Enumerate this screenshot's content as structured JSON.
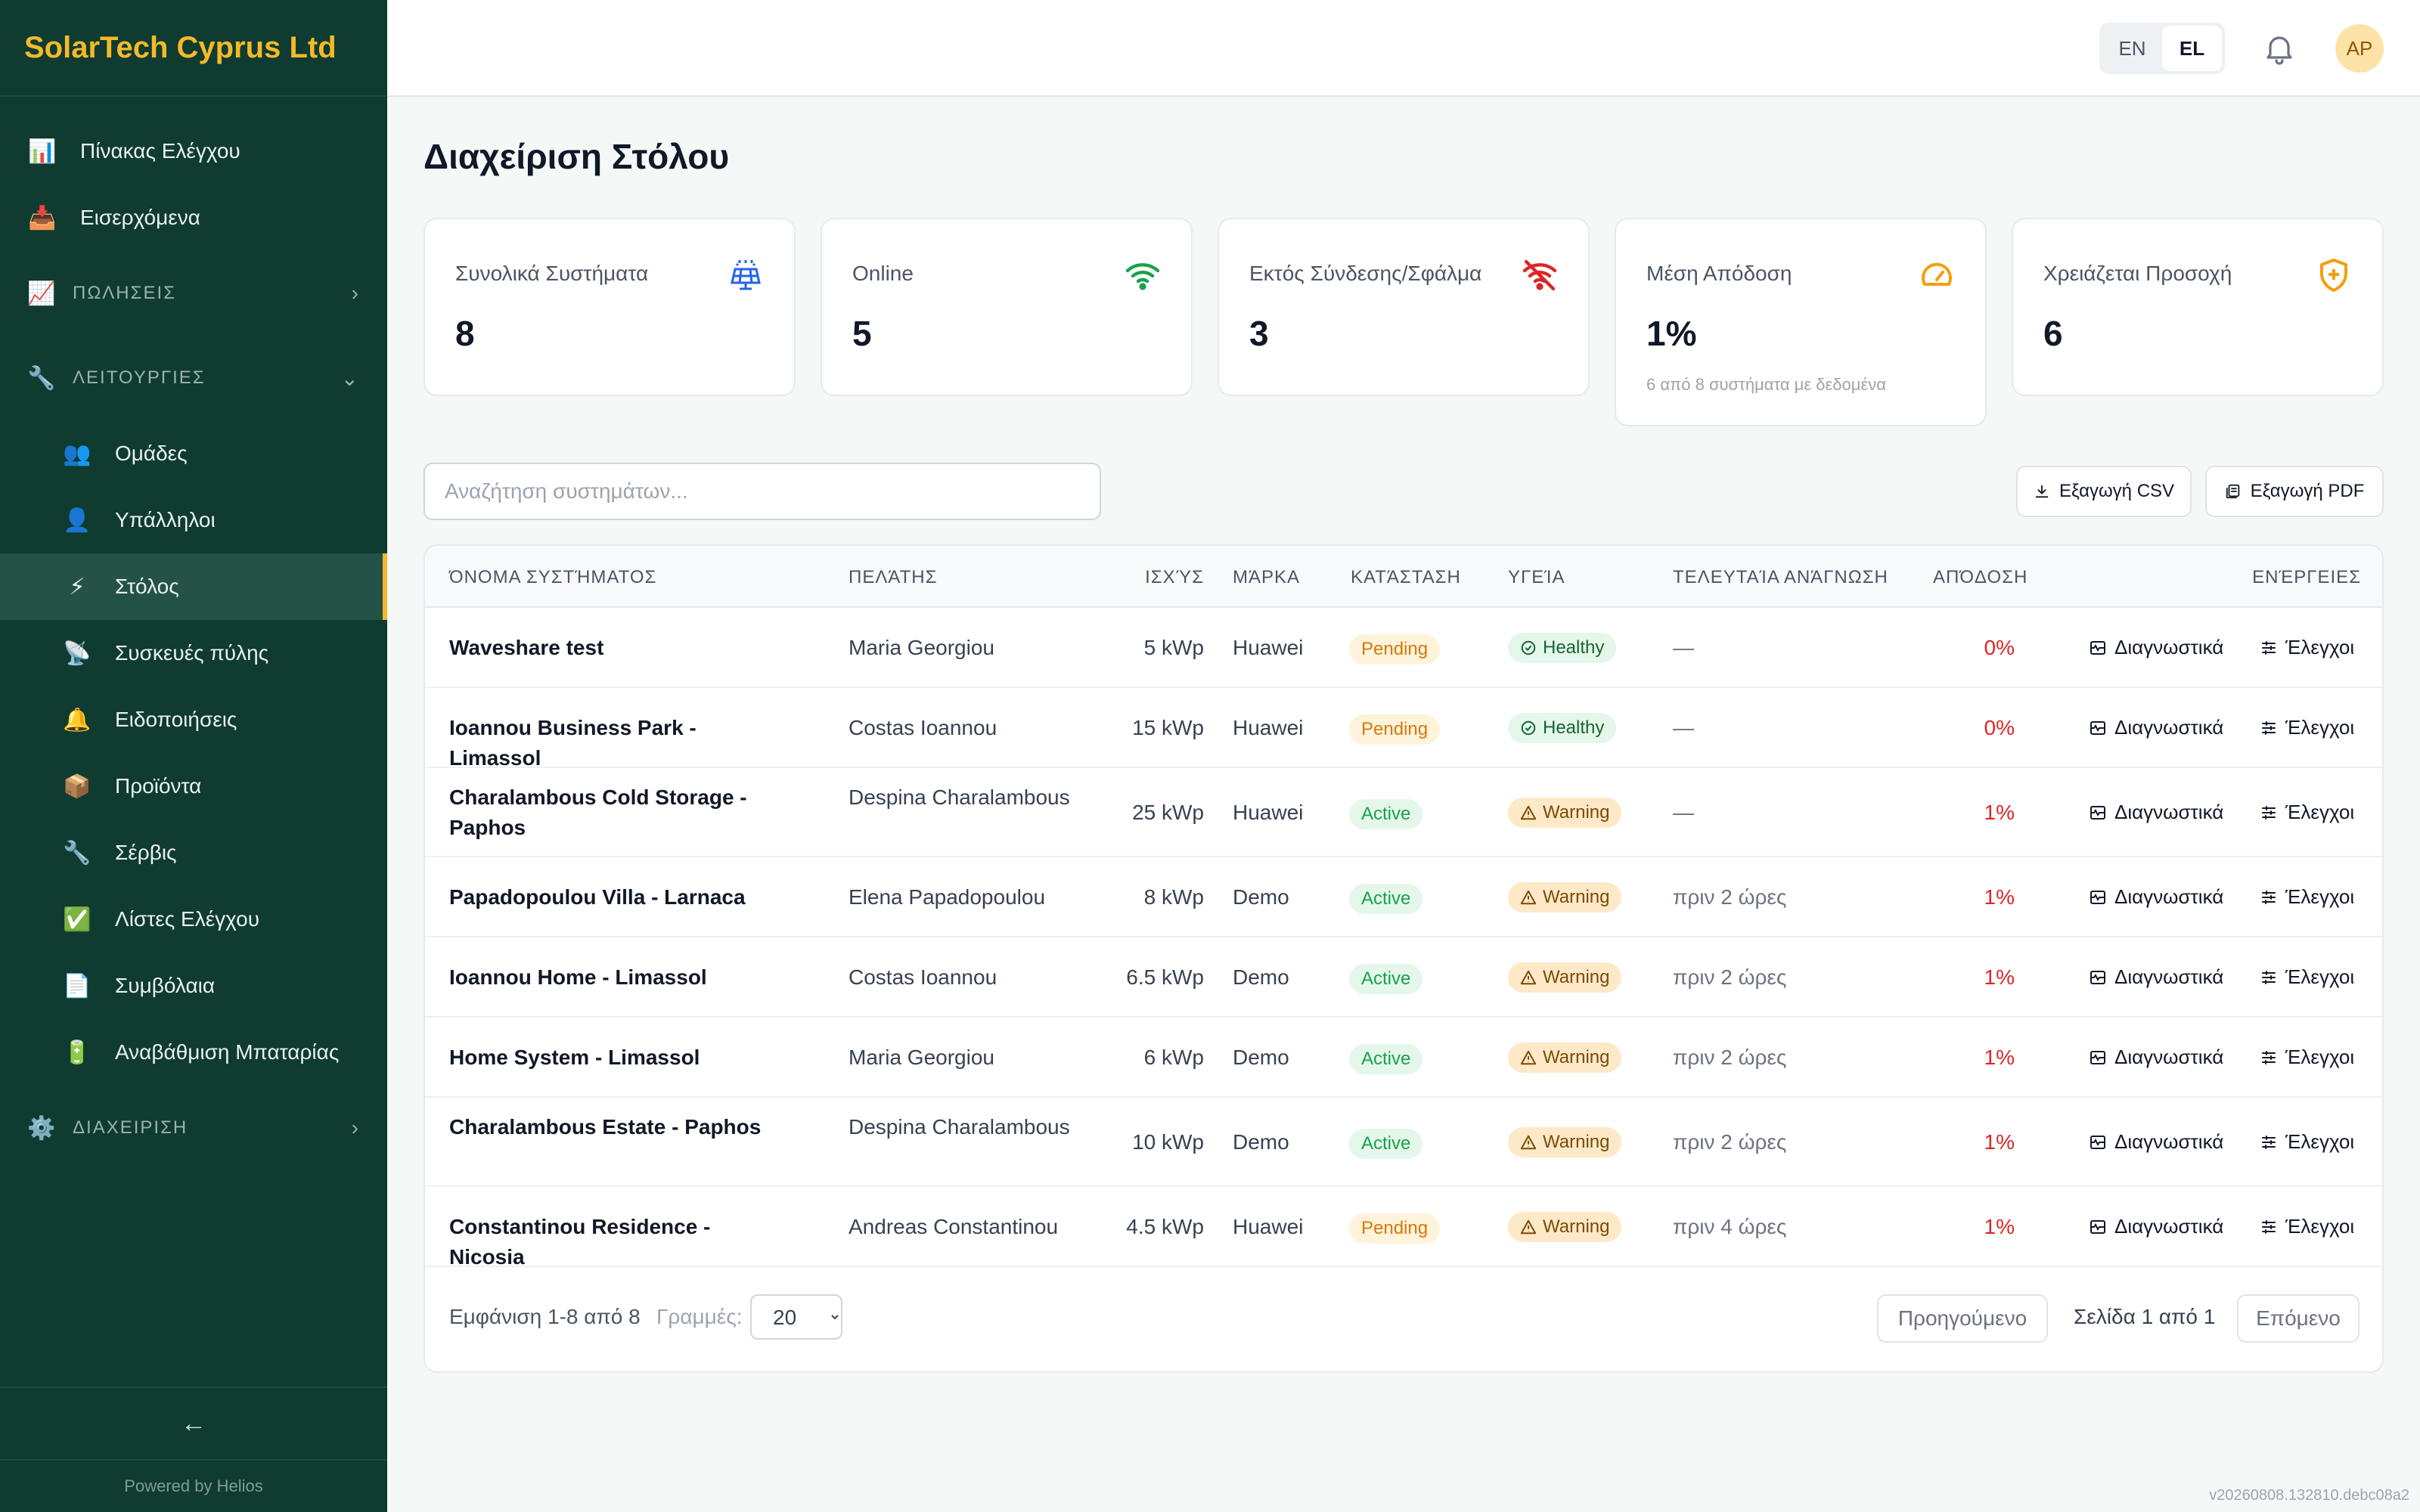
{
  "app": {
    "brand": "SolarTech Cyprus Ltd",
    "powered_by": "Powered by Helios",
    "version": "v20260808.132810.debc08a2",
    "collapse_icon": "←"
  },
  "sidebar": {
    "top_items": [
      {
        "label": "Πίνακας Ελέγχου",
        "icon": "📊"
      },
      {
        "label": "Εισερχόμενα",
        "icon": "📥"
      }
    ],
    "sections": {
      "sales": {
        "label": "ΠΩΛΗΣΕΙΣ",
        "icon": "📈"
      },
      "operations": {
        "label": "ΛΕΙΤΟΥΡΓΙΕΣ",
        "icon": "🔧"
      },
      "admin": {
        "label": "ΔΙΑΧΕΙΡΙΣΗ",
        "icon": "⚙️"
      }
    },
    "ops_items": [
      {
        "label": "Ομάδες",
        "icon": "👥"
      },
      {
        "label": "Υπάλληλοι",
        "icon": "👤"
      },
      {
        "label": "Στόλος",
        "icon": "⚡"
      },
      {
        "label": "Συσκευές πύλης",
        "icon": "📡"
      },
      {
        "label": "Ειδοποιήσεις",
        "icon": "🔔"
      },
      {
        "label": "Προϊόντα",
        "icon": "📦"
      },
      {
        "label": "Σέρβις",
        "icon": "🔧"
      },
      {
        "label": "Λίστες Ελέγχου",
        "icon": "✅"
      },
      {
        "label": "Συμβόλαια",
        "icon": "📄"
      },
      {
        "label": "Αναβάθμιση Μπαταρίας",
        "icon": "🔋"
      }
    ]
  },
  "header": {
    "lang_en": "EN",
    "lang_el": "EL",
    "avatar": "AP"
  },
  "page": {
    "title": "Διαχείριση Στόλου"
  },
  "stats": [
    {
      "label": "Συνολικά Συστήματα",
      "value": "8",
      "icon": "solar-panel-icon",
      "color": "#2563eb"
    },
    {
      "label": "Online",
      "value": "5",
      "icon": "wifi-icon",
      "color": "#16a34a"
    },
    {
      "label": "Εκτός Σύνδεσης/Σφάλμα",
      "value": "3",
      "icon": "wifi-off-icon",
      "color": "#dc2626"
    },
    {
      "label": "Μέση Απόδοση",
      "value": "1%",
      "note": "6 από 8 συστήματα με δεδομένα",
      "icon": "gauge-icon",
      "color": "#f59e0b"
    },
    {
      "label": "Χρειάζεται Προσοχή",
      "value": "6",
      "icon": "shield-icon",
      "color": "#f59e0b"
    }
  ],
  "toolbar": {
    "search_placeholder": "Αναζήτηση συστημάτων...",
    "export_csv": "Εξαγωγή CSV",
    "export_pdf": "Εξαγωγή PDF"
  },
  "table": {
    "headers": {
      "name": "ΌΝΟΜΑ ΣΥΣΤΉΜΑΤΟΣ",
      "customer": "ΠΕΛΆΤΗΣ",
      "power": "ΙΣΧΎΣ",
      "brand": "ΜΆΡΚΑ",
      "status": "ΚΑΤΆΣΤΑΣΗ",
      "health": "ΥΓΕΊΑ",
      "last_reading": "ΤΕΛΕΥΤΑΊΑ ΑΝΆΓΝΩΣΗ",
      "performance": "ΑΠΌΔΟΣΗ",
      "actions": "ΕΝΈΡΓΕΙΕΣ"
    },
    "action_diag": "Διαγνωστικά",
    "action_ctrl": "Έλεγχοι",
    "rows": [
      {
        "name": "Waveshare test",
        "customer": "Maria Georgiou",
        "power": "5 kWp",
        "brand": "Huawei",
        "status": "Pending",
        "health": "Healthy",
        "last": "—",
        "perf": "0%"
      },
      {
        "name": "Ioannou Business Park - Limassol",
        "customer": "Costas Ioannou",
        "power": "15 kWp",
        "brand": "Huawei",
        "status": "Pending",
        "health": "Healthy",
        "last": "—",
        "perf": "0%"
      },
      {
        "name": "Charalambous Cold Storage - Paphos",
        "customer": "Despina Charalambous",
        "power": "25 kWp",
        "brand": "Huawei",
        "status": "Active",
        "health": "Warning",
        "last": "—",
        "perf": "1%"
      },
      {
        "name": "Papadopoulou Villa - Larnaca",
        "customer": "Elena Papadopoulou",
        "power": "8 kWp",
        "brand": "Demo",
        "status": "Active",
        "health": "Warning",
        "last": "πριν 2 ώρες",
        "perf": "1%"
      },
      {
        "name": "Ioannou Home - Limassol",
        "customer": "Costas Ioannou",
        "power": "6.5 kWp",
        "brand": "Demo",
        "status": "Active",
        "health": "Warning",
        "last": "πριν 2 ώρες",
        "perf": "1%"
      },
      {
        "name": "Home System - Limassol",
        "customer": "Maria Georgiou",
        "power": "6 kWp",
        "brand": "Demo",
        "status": "Active",
        "health": "Warning",
        "last": "πριν 2 ώρες",
        "perf": "1%"
      },
      {
        "name": "Charalambous Estate - Paphos",
        "customer": "Despina Charalambous",
        "power": "10 kWp",
        "brand": "Demo",
        "status": "Active",
        "health": "Warning",
        "last": "πριν 2 ώρες",
        "perf": "1%"
      },
      {
        "name": "Constantinou Residence - Nicosia",
        "customer": "Andreas Constantinou",
        "power": "4.5 kWp",
        "brand": "Huawei",
        "status": "Pending",
        "health": "Warning",
        "last": "πριν 4 ώρες",
        "perf": "1%"
      }
    ]
  },
  "pagination": {
    "showing": "Εμφάνιση 1-8 από 8",
    "rows_label": "Γραμμές:",
    "rows_value": "20",
    "prev": "Προηγούμενο",
    "page_info": "Σελίδα 1 από 1",
    "next": "Επόμενο"
  }
}
